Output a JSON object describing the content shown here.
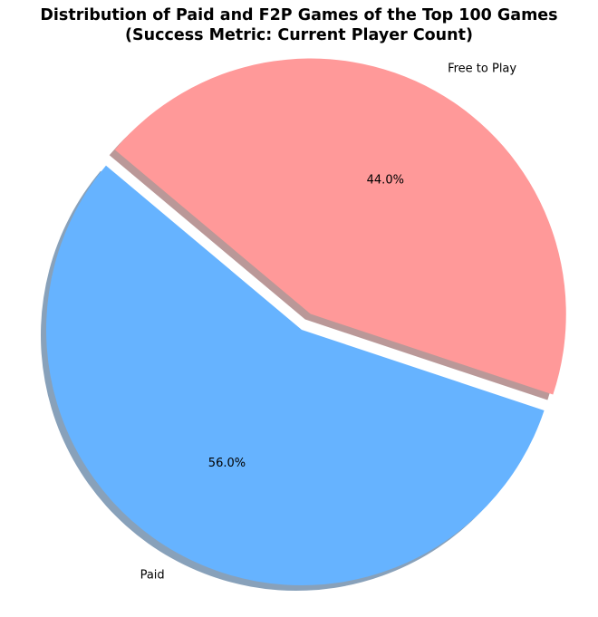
{
  "chart_data": {
    "type": "pie",
    "title": "Distribution of Paid and F2P Games of the Top 100 Games",
    "subtitle": "(Success Metric: Current Player Count)",
    "slices": [
      {
        "label": "Paid",
        "value": 56.0,
        "percent_label": "56.0%",
        "color": "#66b3ff",
        "exploded": false
      },
      {
        "label": "Free to Play",
        "value": 44.0,
        "percent_label": "44.0%",
        "color": "#ff9999",
        "exploded": true
      }
    ],
    "start_angle_deg": 140,
    "shadow": true
  }
}
